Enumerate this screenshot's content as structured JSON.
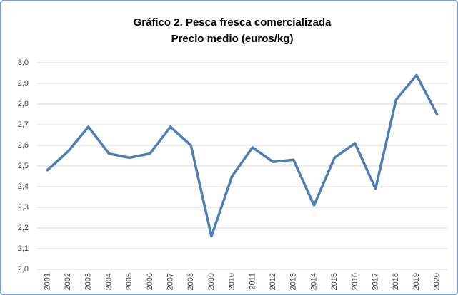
{
  "chart_data": {
    "type": "line",
    "title": "Gráfico 2. Pesca fresca comercializada",
    "subtitle": "Precio medio (euros/kg)",
    "categories": [
      "2001",
      "2002",
      "2003",
      "2004",
      "2005",
      "2006",
      "2007",
      "2008",
      "2009",
      "2010",
      "2011",
      "2012",
      "2013",
      "2014",
      "2015",
      "2016",
      "2017",
      "2018",
      "2019",
      "2020"
    ],
    "series": [
      {
        "name": "Precio medio",
        "color": "#4a7ebb",
        "values": [
          2.48,
          2.57,
          2.69,
          2.56,
          2.54,
          2.56,
          2.69,
          2.6,
          2.16,
          2.45,
          2.59,
          2.52,
          2.53,
          2.31,
          2.54,
          2.61,
          2.39,
          2.82,
          2.94,
          2.75
        ]
      }
    ],
    "ylim": [
      2.0,
      3.0
    ],
    "yticks": [
      {
        "value": 2.0,
        "label": "2,0"
      },
      {
        "value": 2.1,
        "label": "2,1"
      },
      {
        "value": 2.2,
        "label": "2,2"
      },
      {
        "value": 2.3,
        "label": "2,3"
      },
      {
        "value": 2.4,
        "label": "2,4"
      },
      {
        "value": 2.5,
        "label": "2,5"
      },
      {
        "value": 2.6,
        "label": "2,6"
      },
      {
        "value": 2.7,
        "label": "2,7"
      },
      {
        "value": 2.8,
        "label": "2,8"
      },
      {
        "value": 2.9,
        "label": "2,9"
      },
      {
        "value": 3.0,
        "label": "3,0"
      }
    ],
    "grid": true
  }
}
